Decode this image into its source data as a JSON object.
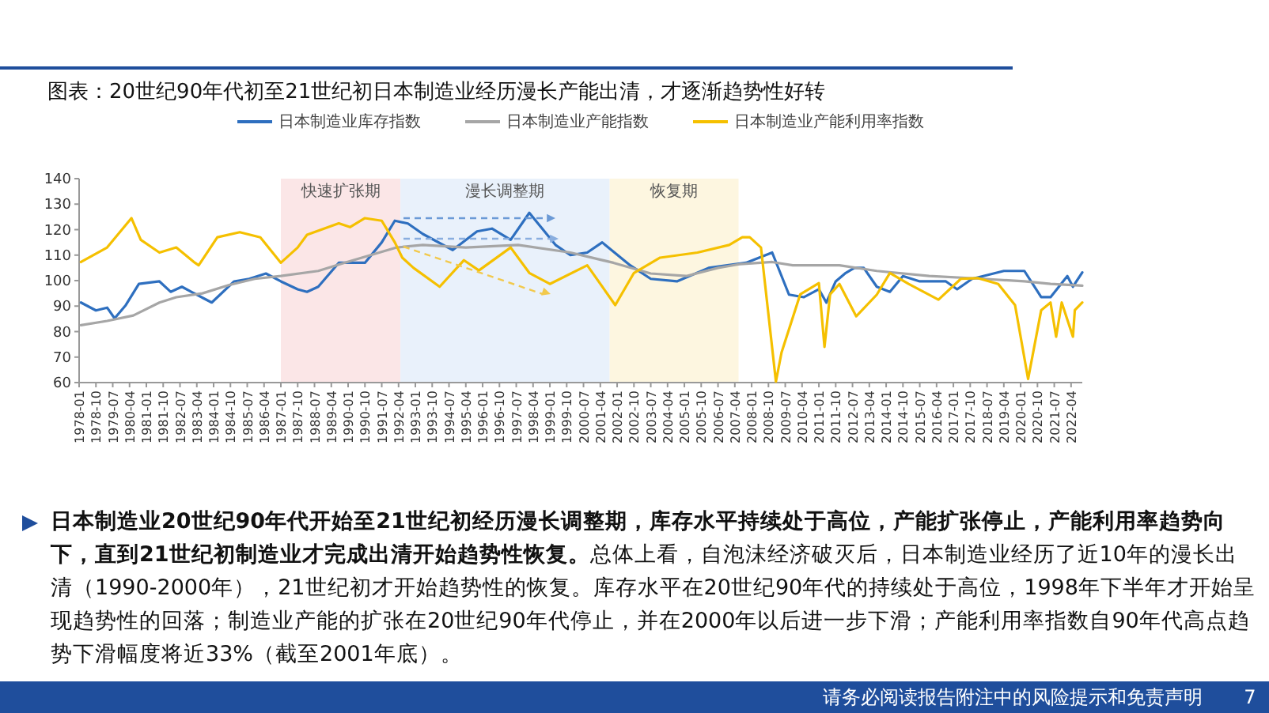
{
  "chart_data": {
    "type": "line",
    "title": "图表：20世纪90年代初至21世纪初日本制造业经历漫长产能出清，才逐渐趋势性好转",
    "legend": "top",
    "xlim": [
      "1978-01",
      "2022-10"
    ],
    "xticks": [
      "1978-01",
      "1978-10",
      "1979-07",
      "1980-04",
      "1981-01",
      "1981-10",
      "1982-07",
      "1983-04",
      "1984-01",
      "1984-10",
      "1985-07",
      "1986-04",
      "1987-01",
      "1987-10",
      "1988-07",
      "1989-04",
      "1990-01",
      "1990-10",
      "1991-07",
      "1992-04",
      "1993-01",
      "1993-10",
      "1994-07",
      "1995-04",
      "1996-01",
      "1996-10",
      "1997-07",
      "1998-04",
      "1999-01",
      "1999-10",
      "2000-07",
      "2001-04",
      "2002-01",
      "2002-10",
      "2003-07",
      "2004-04",
      "2005-01",
      "2005-10",
      "2006-07",
      "2007-04",
      "2008-01",
      "2008-10",
      "2009-07",
      "2010-04",
      "2011-01",
      "2011-10",
      "2012-07",
      "2013-04",
      "2014-01",
      "2014-10",
      "2015-07",
      "2016-04",
      "2017-01",
      "2017-10",
      "2018-07",
      "2019-04",
      "2020-01",
      "2020-10",
      "2021-07",
      "2022-04"
    ],
    "ylim": [
      60,
      140
    ],
    "yticks": [
      60,
      70,
      80,
      90,
      100,
      110,
      120,
      130,
      140
    ],
    "bands": [
      {
        "axis": "x",
        "from": "1987-01",
        "to": "1992-05",
        "label": "快速扩张期",
        "color": "#fbe6e7"
      },
      {
        "axis": "x",
        "from": "1992-05",
        "to": "2001-09",
        "label": "漫长调整期",
        "color": "#e9f1fb"
      },
      {
        "axis": "x",
        "from": "2001-09",
        "to": "2007-06",
        "label": "恢复期",
        "color": "#fdf6e0"
      }
    ],
    "series": [
      {
        "name": "日本制造业库存指数",
        "color": "#2e6fbf",
        "x": [
          "1978-02",
          "1978-10",
          "1979-04",
          "1979-08",
          "1980-02",
          "1980-09",
          "1981-08",
          "1982-02",
          "1982-08",
          "1983-01",
          "1983-12",
          "1984-12",
          "1985-08",
          "1986-05",
          "1987-01",
          "1987-10",
          "1988-03",
          "1988-09",
          "1989-08",
          "1990-10",
          "1991-07",
          "1992-02",
          "1992-09",
          "1993-05",
          "1994-09",
          "1995-10",
          "1996-06",
          "1997-04",
          "1998-02",
          "1999-04",
          "1999-12",
          "2000-09",
          "2001-05",
          "2002-08",
          "2003-07",
          "2004-09",
          "2006-02",
          "2007-10",
          "2008-12",
          "2009-09",
          "2010-05",
          "2011-01",
          "2011-05",
          "2011-10",
          "2012-03",
          "2012-08",
          "2013-01",
          "2013-08",
          "2014-03",
          "2014-10",
          "2015-07",
          "2016-09",
          "2017-03",
          "2017-11",
          "2018-05",
          "2019-04",
          "2020-03",
          "2020-12",
          "2021-05",
          "2022-02",
          "2022-05",
          "2022-10"
        ],
        "values": [
          91.4,
          88.3,
          89.4,
          85.2,
          90.4,
          98.7,
          99.7,
          95.6,
          97.6,
          95.6,
          91.4,
          99.7,
          100.7,
          102.8,
          99.7,
          96.6,
          95.6,
          97.6,
          107,
          107,
          115,
          123.5,
          122.4,
          118.3,
          112,
          119.3,
          120.4,
          116,
          126.6,
          114,
          110,
          111,
          115,
          106,
          100.7,
          99.7,
          105,
          107,
          111,
          94.5,
          93.5,
          96.6,
          91.4,
          99.7,
          102.8,
          105,
          105,
          97.6,
          95.6,
          101.8,
          99.7,
          99.7,
          96.6,
          100.7,
          101.8,
          103.8,
          103.8,
          93.5,
          93.5,
          101.8,
          97.6,
          103.2
        ]
      },
      {
        "name": "日本制造业产能指数",
        "color": "#a6a6a6",
        "x": [
          "1978-02",
          "1979-04",
          "1980-06",
          "1981-08",
          "1982-05",
          "1983-07",
          "1984-09",
          "1985-11",
          "1987-01",
          "1988-09",
          "1989-11",
          "1991-01",
          "1992-03",
          "1993-05",
          "1995-04",
          "1997-08",
          "1999-12",
          "2001-11",
          "2003-07",
          "2005-02",
          "2006-07",
          "2007-07",
          "2008-12",
          "2009-11",
          "2011-12",
          "2013-08",
          "2015-12",
          "2018-05",
          "2020-03",
          "2021-05",
          "2022-10"
        ],
        "values": [
          82.5,
          84.2,
          86.3,
          91.4,
          93.5,
          95,
          98.2,
          100.7,
          101.8,
          103.8,
          107,
          110,
          113,
          114,
          113,
          114,
          111,
          107,
          102.8,
          101.8,
          105,
          106.5,
          107.3,
          106,
          106,
          103.8,
          101.8,
          100.7,
          99.7,
          98.7,
          98
        ]
      },
      {
        "name": "日本制造业产能利用率指数",
        "color": "#f5c000",
        "x": [
          "1978-02",
          "1979-04",
          "1980-05",
          "1980-10",
          "1981-08",
          "1982-05",
          "1983-03",
          "1983-05",
          "1984-03",
          "1985-03",
          "1986-02",
          "1987-01",
          "1987-10",
          "1988-03",
          "1989-08",
          "1990-02",
          "1990-10",
          "1991-07",
          "1992-02",
          "1992-06",
          "1992-12",
          "1994-02",
          "1995-03",
          "1995-11",
          "1997-04",
          "1998-02",
          "1999-01",
          "2000-09",
          "2001-12",
          "2002-10",
          "2003-12",
          "2005-08",
          "2007-01",
          "2007-08",
          "2007-12",
          "2008-06",
          "2009-02",
          "2009-05",
          "2010-03",
          "2011-01",
          "2011-04",
          "2011-07",
          "2011-12",
          "2012-09",
          "2013-08",
          "2014-03",
          "2015-01",
          "2016-05",
          "2017-05",
          "2018-02",
          "2019-01",
          "2019-10",
          "2020-05",
          "2020-12",
          "2021-05",
          "2021-08",
          "2021-11",
          "2022-05",
          "2022-06",
          "2022-10"
        ],
        "values": [
          107.3,
          113,
          124.5,
          116,
          111,
          113,
          107,
          106,
          117,
          119,
          117,
          107,
          113,
          118,
          122.5,
          121,
          124.5,
          123.5,
          115,
          109,
          105,
          97.6,
          108,
          104,
          113,
          103,
          98.7,
          106,
          90.4,
          103,
          109,
          111,
          114,
          117,
          117,
          113,
          60.4,
          71.8,
          94.6,
          99,
          74,
          94.6,
          98.7,
          86,
          94.5,
          103,
          98.7,
          92.5,
          100.7,
          101,
          98.7,
          90.4,
          61.4,
          88.4,
          91.4,
          78,
          91.4,
          78,
          88.4,
          91.4
        ]
      }
    ],
    "annotations": [
      "日本制造业20世纪90年代开始至21世纪初经历漫长调整期，库存水平持续处于高位，产能扩张停止，产能利用率趋势向下，直到21世纪初制造业才完成出清开始趋势性恢复。",
      "总体上看，自泡沫经济破灭后，日本制造业经历了近10年的漫长出清（1990-2000年），21世纪初才开始趋势性的恢复。库存水平在20世纪90年代的持续处于高位，1998年下半年才开始呈现趋势性的回落；制造业产能的扩张在20世纪90年代停止，并在2000年以后进一步下滑；产能利用率指数自90年代高点趋势下滑幅度将近33%（截至2001年底）。",
      "请务必阅读报告附注中的风险提示和免责声明",
      "7"
    ]
  }
}
